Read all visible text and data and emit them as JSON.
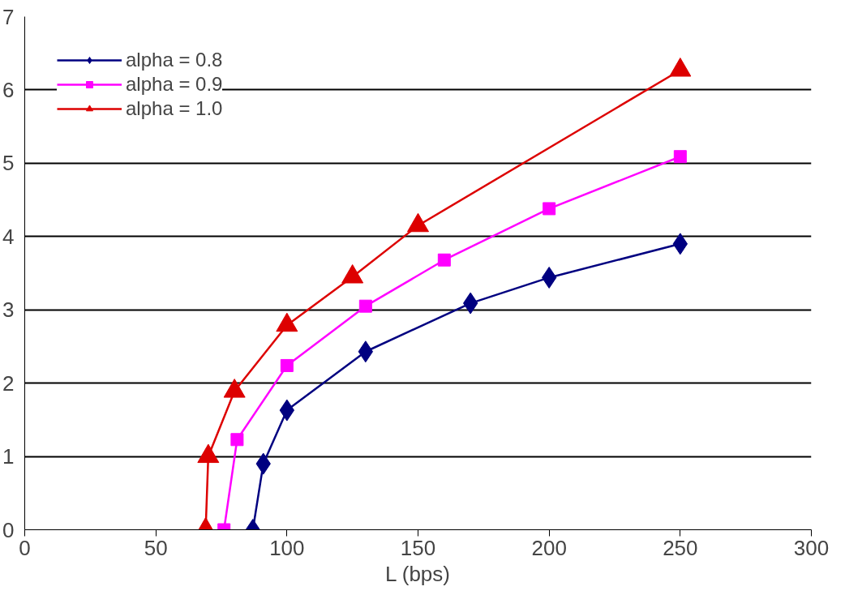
{
  "chart_data": {
    "type": "line",
    "xlabel": "L (bps)",
    "xlim": [
      0,
      300
    ],
    "xticks": [
      0,
      50,
      100,
      150,
      200,
      250,
      300
    ],
    "ylim": [
      0,
      7
    ],
    "yticks": [
      0,
      1,
      2,
      3,
      4,
      5,
      6,
      7
    ],
    "grid": "y",
    "legend": "top left",
    "series": [
      {
        "name": "alpha = 0.8",
        "color": "#000080",
        "marker": "diamond",
        "x": [
          87,
          91,
          100,
          130,
          170,
          200,
          250
        ],
        "values": [
          0,
          0.9,
          1.63,
          2.43,
          3.09,
          3.44,
          3.9
        ]
      },
      {
        "name": "alpha = 0.9",
        "color": "#ff00ff",
        "marker": "square",
        "x": [
          76,
          81,
          100,
          130,
          160,
          200,
          250
        ],
        "values": [
          0,
          1.23,
          2.24,
          3.05,
          3.68,
          4.38,
          5.09
        ]
      },
      {
        "name": "alpha = 1.0",
        "color": "#dd0000",
        "marker": "triangle",
        "x": [
          69,
          70,
          80,
          100,
          125,
          150,
          250
        ],
        "values": [
          0,
          1.0,
          1.89,
          2.79,
          3.45,
          4.15,
          6.27
        ]
      }
    ]
  }
}
